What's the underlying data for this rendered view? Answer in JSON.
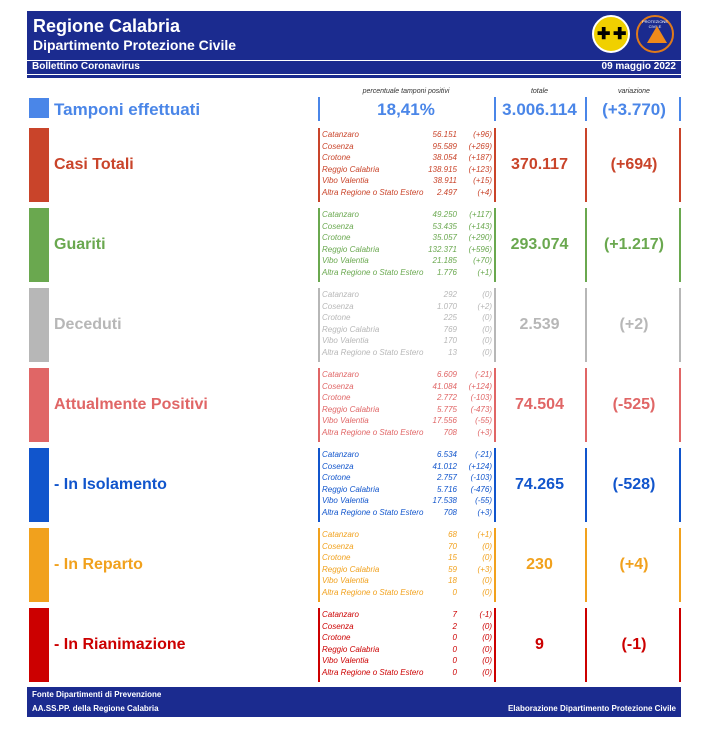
{
  "header": {
    "title": "Regione Calabria",
    "subtitle": "Dipartimento Protezione Civile",
    "bulletin": "Bollettino Coronavirus",
    "date": "09 maggio 2022",
    "logo2_text": "PROTEZIONE CIVILE"
  },
  "columns": {
    "pct_label": "percentuale tamponi positivi",
    "total_label": "totale",
    "var_label": "variazione"
  },
  "tamponi": {
    "label": "Tamponi effettuati",
    "pct": "18,41%",
    "total": "3.006.114",
    "var": "(+3.770)",
    "color": "#4a86e8"
  },
  "sections": [
    {
      "label": "Casi Totali",
      "color": "#c9442a",
      "total": "370.117",
      "var": "(+694)",
      "rows": [
        {
          "n": "Catanzaro",
          "v": "56.151",
          "d": "(+96)"
        },
        {
          "n": "Cosenza",
          "v": "95.589",
          "d": "(+269)"
        },
        {
          "n": "Crotone",
          "v": "38.054",
          "d": "(+187)"
        },
        {
          "n": "Reggio Calabria",
          "v": "138.915",
          "d": "(+123)"
        },
        {
          "n": "Vibo Valentia",
          "v": "38.911",
          "d": "(+15)"
        },
        {
          "n": "Altra Regione o Stato Estero",
          "v": "2.497",
          "d": "(+4)"
        }
      ]
    },
    {
      "label": "Guariti",
      "color": "#6aa84f",
      "total": "293.074",
      "var": "(+1.217)",
      "rows": [
        {
          "n": "Catanzaro",
          "v": "49.250",
          "d": "(+117)"
        },
        {
          "n": "Cosenza",
          "v": "53.435",
          "d": "(+143)"
        },
        {
          "n": "Crotone",
          "v": "35.057",
          "d": "(+290)"
        },
        {
          "n": "Reggio Calabria",
          "v": "132.371",
          "d": "(+596)"
        },
        {
          "n": "Vibo Valentia",
          "v": "21.185",
          "d": "(+70)"
        },
        {
          "n": "Altra Regione o Stato Estero",
          "v": "1.776",
          "d": "(+1)"
        }
      ]
    },
    {
      "label": "Deceduti",
      "color": "#b7b7b7",
      "total": "2.539",
      "var": "(+2)",
      "rows": [
        {
          "n": "Catanzaro",
          "v": "292",
          "d": "(0)"
        },
        {
          "n": "Cosenza",
          "v": "1.070",
          "d": "(+2)"
        },
        {
          "n": "Crotone",
          "v": "225",
          "d": "(0)"
        },
        {
          "n": "Reggio Calabria",
          "v": "769",
          "d": "(0)"
        },
        {
          "n": "Vibo Valentia",
          "v": "170",
          "d": "(0)"
        },
        {
          "n": "Altra Regione o Stato Estero",
          "v": "13",
          "d": "(0)"
        }
      ]
    },
    {
      "label": "Attualmente Positivi",
      "color": "#e06666",
      "total": "74.504",
      "var": "(-525)",
      "rows": [
        {
          "n": "Catanzaro",
          "v": "6.609",
          "d": "(-21)"
        },
        {
          "n": "Cosenza",
          "v": "41.084",
          "d": "(+124)"
        },
        {
          "n": "Crotone",
          "v": "2.772",
          "d": "(-103)"
        },
        {
          "n": "Reggio Calabria",
          "v": "5.775",
          "d": "(-473)"
        },
        {
          "n": "Vibo Valentia",
          "v": "17.556",
          "d": "(-55)"
        },
        {
          "n": "Altra Regione o Stato Estero",
          "v": "708",
          "d": "(+3)"
        }
      ]
    },
    {
      "label": " - In Isolamento",
      "color": "#1155cc",
      "total": "74.265",
      "var": "(-528)",
      "rows": [
        {
          "n": "Catanzaro",
          "v": "6.534",
          "d": "(-21)"
        },
        {
          "n": "Cosenza",
          "v": "41.012",
          "d": "(+124)"
        },
        {
          "n": "Crotone",
          "v": "2.757",
          "d": "(-103)"
        },
        {
          "n": "Reggio Calabria",
          "v": "5.716",
          "d": "(-476)"
        },
        {
          "n": "Vibo Valentia",
          "v": "17.538",
          "d": "(-55)"
        },
        {
          "n": "Altra Regione o Stato Estero",
          "v": "708",
          "d": "(+3)"
        }
      ]
    },
    {
      "label": " - In Reparto",
      "color": "#f1a11d",
      "total": "230",
      "var": "(+4)",
      "rows": [
        {
          "n": "Catanzaro",
          "v": "68",
          "d": "(+1)"
        },
        {
          "n": "Cosenza",
          "v": "70",
          "d": "(0)"
        },
        {
          "n": "Crotone",
          "v": "15",
          "d": "(0)"
        },
        {
          "n": "Reggio Calabria",
          "v": "59",
          "d": "(+3)"
        },
        {
          "n": "Vibo Valentia",
          "v": "18",
          "d": "(0)"
        },
        {
          "n": "Altra Regione o Stato Estero",
          "v": "0",
          "d": "(0)"
        }
      ]
    },
    {
      "label": " - In Rianimazione",
      "color": "#cc0000",
      "total": "9",
      "var": "(-1)",
      "rows": [
        {
          "n": "Catanzaro",
          "v": "7",
          "d": "(-1)"
        },
        {
          "n": "Cosenza",
          "v": "2",
          "d": "(0)"
        },
        {
          "n": "Crotone",
          "v": "0",
          "d": "(0)"
        },
        {
          "n": "Reggio Calabria",
          "v": "0",
          "d": "(0)"
        },
        {
          "n": "Vibo Valentia",
          "v": "0",
          "d": "(0)"
        },
        {
          "n": "Altra Regione o Stato Estero",
          "v": "0",
          "d": "(0)"
        }
      ]
    }
  ],
  "footer": {
    "source1": "Fonte Dipartimenti di Prevenzione",
    "source2": "AA.SS.PP.  della Regione Calabria",
    "credit": "Elaborazione Dipartimento Protezione Civile"
  }
}
